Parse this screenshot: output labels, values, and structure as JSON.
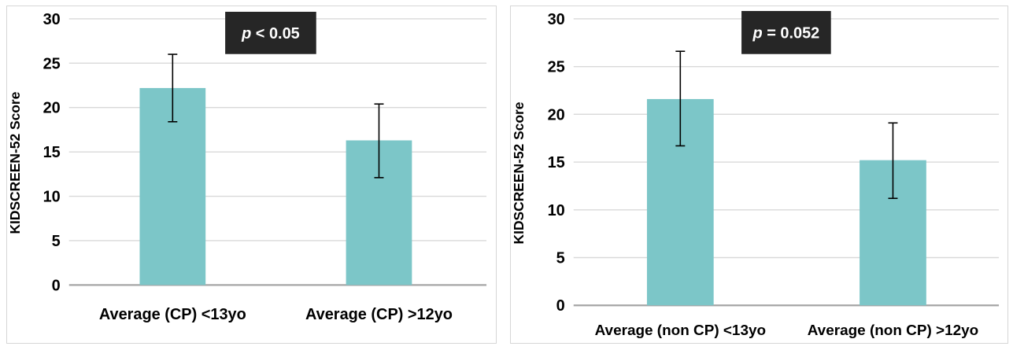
{
  "figure": {
    "background": "#ffffff",
    "panel_border_color": "#d6d6d6"
  },
  "colors": {
    "bar_fill": "#7cc6c8",
    "gridline": "#d9d9d9",
    "axis_line": "#a6a6a6",
    "error_bar": "#000000",
    "text": "#000000",
    "pbox_bg": "#262626",
    "pbox_text": "#ffffff"
  },
  "chart_data": [
    {
      "type": "bar",
      "title": "",
      "xlabel": "",
      "ylabel": "KIDSCREEN-52 Score",
      "ylim": [
        0,
        30
      ],
      "yticks": [
        0,
        5,
        10,
        15,
        20,
        25,
        30
      ],
      "grid": true,
      "legend": false,
      "categories": [
        "Average (CP) <13yo",
        "Average (CP) >12yo"
      ],
      "values": [
        22.2,
        16.3
      ],
      "error_low": [
        18.4,
        12.1
      ],
      "error_high": [
        26.0,
        20.4
      ],
      "annotation": {
        "italic": "p",
        "rest": " < 0.05",
        "text": "p < 0.05"
      }
    },
    {
      "type": "bar",
      "title": "",
      "xlabel": "",
      "ylabel": "KIDSCREEN-52 Score",
      "ylim": [
        0,
        30
      ],
      "yticks": [
        0,
        5,
        10,
        15,
        20,
        25,
        30
      ],
      "grid": true,
      "legend": false,
      "categories": [
        "Average (non CP) <13yo",
        "Average (non CP) >12yo"
      ],
      "values": [
        21.6,
        15.2
      ],
      "error_low": [
        16.7,
        11.2
      ],
      "error_high": [
        26.6,
        19.1
      ],
      "annotation": {
        "italic": "p",
        "rest": " = 0.052",
        "text": "p = 0.052"
      }
    }
  ]
}
